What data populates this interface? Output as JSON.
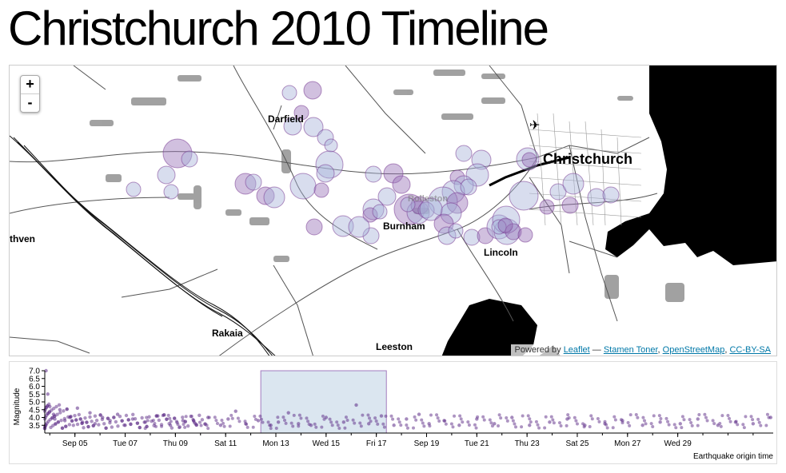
{
  "page": {
    "title": "Christchurch 2010 Timeline"
  },
  "map": {
    "zoom_in_label": "+",
    "zoom_out_label": "-",
    "places": [
      "Christchurch",
      "Darfield",
      "Burnham",
      "Lincoln",
      "Rakaia",
      "Leeston",
      "thven",
      "Rolleston"
    ],
    "attribution": {
      "prefix": "Powered by ",
      "leaflet": "Leaflet",
      "dash": " — ",
      "toner": "Stamen Toner",
      "sep1": ", ",
      "osm": "OpenStreetMap",
      "sep2": ", ",
      "license": "CC-BY-SA"
    }
  },
  "chart_data": {
    "type": "scatter",
    "ylabel": "Magnitude",
    "xlabel": "Earthquake origin time",
    "ylim": [
      3.0,
      7.0
    ],
    "yticks": [
      "7.0",
      "6.5",
      "6.0",
      "5.5",
      "5.0",
      "4.5",
      "4.0",
      "3.5"
    ],
    "xticks": [
      "Sep 05",
      "Tue 07",
      "Thu 09",
      "Sat 11",
      "Mon 13",
      "Wed 15",
      "Fri 17",
      "Sep 19",
      "Tue 21",
      "Thu 23",
      "Sat 25",
      "Mon 27",
      "Wed 29"
    ],
    "brush_range": [
      "Sep 12",
      "Sep 17"
    ],
    "series": [
      {
        "name": "",
        "x": [
          0.05,
          0.12,
          0.2,
          0.35,
          0.4,
          0.6,
          0.8,
          1.0,
          1.3,
          1.5,
          1.8,
          2.0,
          2.3,
          2.6,
          2.9,
          3.2,
          3.5,
          4.0,
          4.5,
          5.0,
          5.5,
          6.0,
          6.5,
          7.0,
          7.3,
          7.6,
          8.0,
          8.5,
          9.0,
          9.3,
          9.7,
          10.1,
          10.6,
          11.2,
          11.9,
          12.4,
          12.9,
          13.4,
          13.9,
          14.4,
          14.9,
          15.3,
          15.9,
          16.5,
          17.2,
          17.9,
          18.6,
          19.3,
          20.1,
          20.8,
          21.5,
          22.3,
          23.0,
          23.8,
          24.5,
          25.3,
          26.0,
          26.8,
          27.5,
          28.2,
          28.9
        ],
        "y": [
          7.0,
          5.5,
          4.7,
          4.2,
          3.9,
          4.5,
          3.8,
          4.0,
          4.6,
          3.7,
          4.3,
          3.6,
          4.0,
          3.8,
          4.2,
          3.5,
          3.9,
          3.7,
          4.1,
          3.5,
          3.8,
          3.6,
          4.0,
          3.5,
          3.9,
          4.4,
          3.6,
          3.8,
          3.5,
          3.7,
          4.3,
          3.6,
          3.5,
          4.0,
          3.7,
          4.8,
          3.6,
          4.1,
          3.5,
          3.9,
          4.2,
          3.6,
          3.8,
          3.5,
          3.9,
          3.6,
          4.0,
          3.5,
          3.7,
          3.9,
          3.5,
          3.6,
          3.8,
          3.5,
          3.7,
          3.6,
          3.9,
          3.5,
          3.7,
          3.6,
          4.0
        ]
      }
    ]
  },
  "colors": {
    "quake": "#5b2a86",
    "brush": "#dbe6f0",
    "bubble_fill": "#a8b4da",
    "bubble_fill_alt": "#9a74b8"
  }
}
